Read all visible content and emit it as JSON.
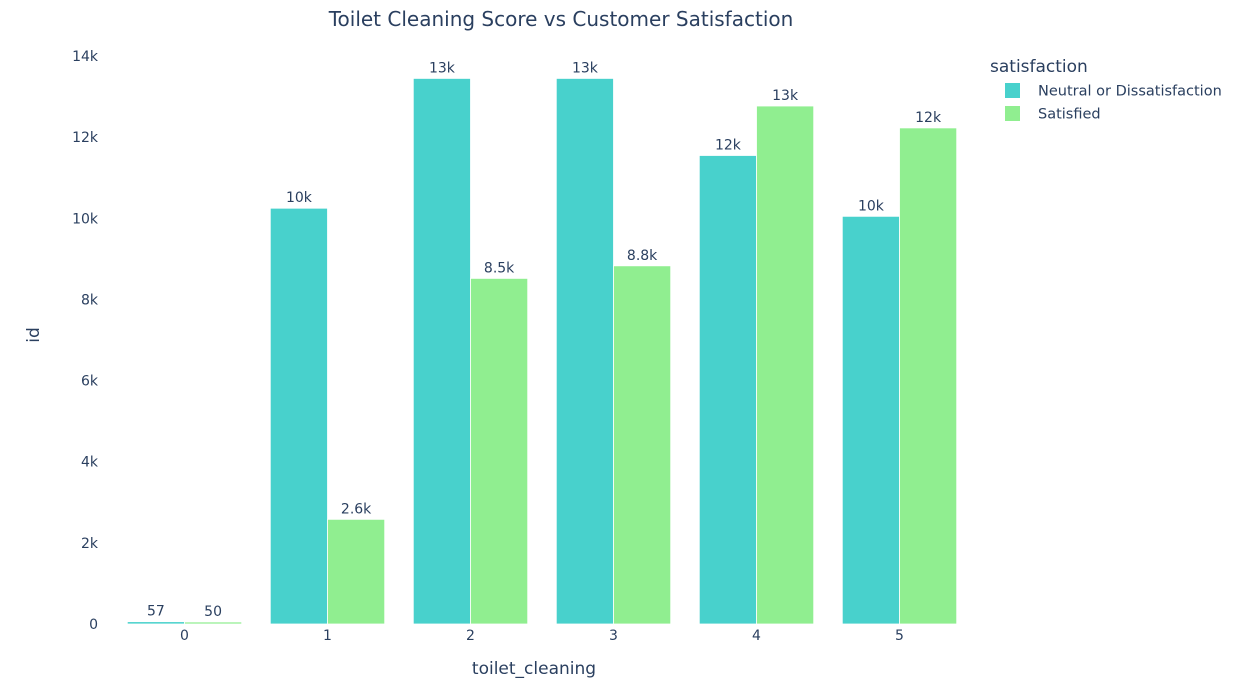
{
  "chart_data": {
    "type": "bar",
    "title": "Toilet Cleaning Score vs Customer Satisfaction",
    "xlabel": "toilet_cleaning",
    "ylabel": "id",
    "categories": [
      "0",
      "1",
      "2",
      "3",
      "4",
      "5"
    ],
    "ylim": [
      0,
      14200
    ],
    "yticks": [
      0,
      2000,
      4000,
      6000,
      8000,
      10000,
      12000,
      14000
    ],
    "ytick_labels": [
      "0",
      "2k",
      "4k",
      "6k",
      "8k",
      "10k",
      "12k",
      "14k"
    ],
    "grid": false,
    "legend": {
      "title": "satisfaction",
      "position": "top-right"
    },
    "series": [
      {
        "name": "Neutral or Dissatisfaction",
        "color": "#48d1cc",
        "values": [
          57,
          10250,
          13450,
          13450,
          11550,
          10050
        ],
        "labels": [
          "57",
          "10k",
          "13k",
          "13k",
          "12k",
          "10k"
        ]
      },
      {
        "name": "Satisfied",
        "color": "#90ee90",
        "values": [
          50,
          2580,
          8520,
          8830,
          12770,
          12230
        ],
        "labels": [
          "50",
          "2.6k",
          "8.5k",
          "8.8k",
          "13k",
          "12k"
        ]
      }
    ]
  }
}
